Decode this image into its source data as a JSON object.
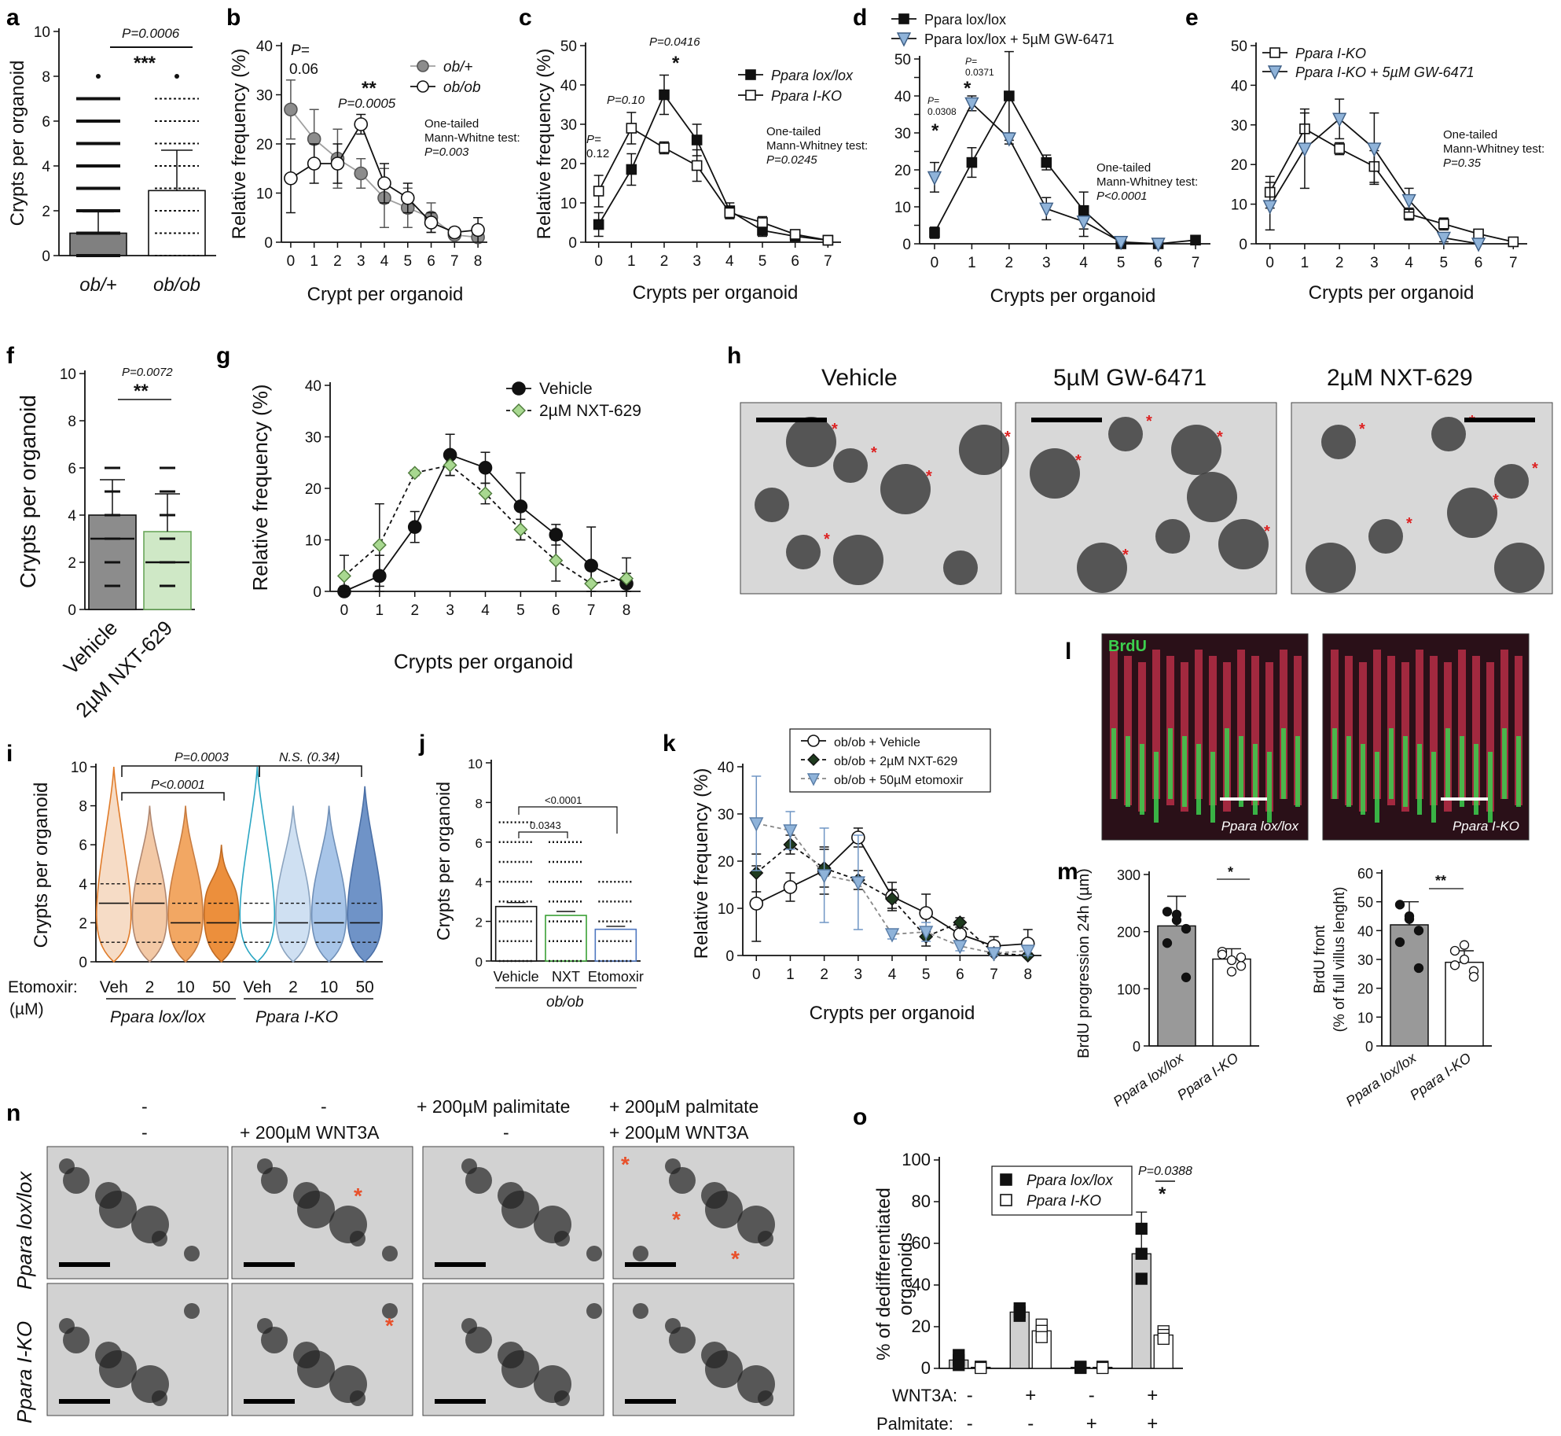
{
  "panels": {
    "a": "a",
    "b": "b",
    "c": "c",
    "d": "d",
    "e": "e",
    "f": "f",
    "g": "g",
    "h": "h",
    "i": "i",
    "j": "j",
    "k": "k",
    "l": "l",
    "m": "m",
    "n": "n",
    "o": "o"
  },
  "text": {
    "a_p": "P=0.0006",
    "a_stars": "***",
    "b_p0": "P=",
    "b_p0b": "0.06",
    "b_p3": "P=0.0005",
    "b_stars": "**",
    "b_test1": "One-tailed",
    "b_test2": "Mann-Whitne test:",
    "b_test3": "P=0.003",
    "c_p0": "P=",
    "c_p0b": "0.12",
    "c_p1": "P=0.10",
    "c_p2": "P=0.0416",
    "c_star": "*",
    "c_test1": "One-tailed",
    "c_test2": "Mann-Whitney test:",
    "c_test3": "P=0.0245",
    "d_p0": "P=",
    "d_p0b": "0.0308",
    "d_p1": "P=",
    "d_p1b": "0.0371",
    "d_star": "*",
    "d_test1": "One-tailed",
    "d_test2": "Mann-Whitney test:",
    "d_test3": "P<0.0001",
    "e_test1": "One-tailed",
    "e_test2": "Mann-Whitney test:",
    "e_test3": "P=0.35",
    "f_p": "P=0.0072",
    "f_stars": "**",
    "h_t1": "Vehicle",
    "h_t2": "5µM GW-6471",
    "h_t3": "2µM NXT-629",
    "i_p1": "P=0.0003",
    "i_p2": "P<0.0001",
    "i_ns": "N.S. (0.34)",
    "i_etox": "Etomoxir:",
    "i_um": "(µM)",
    "i_g1": "Ppara lox/lox",
    "i_g2": "Ppara I-KO",
    "j_p1": "<0.0001",
    "j_p2": "0.0343",
    "j_ob": "ob/ob",
    "l_brdu": "BrdU",
    "l_lab1": "Ppara lox/lox",
    "l_lab2": "Ppara I-KO",
    "m_s1": "*",
    "m_s2": "**",
    "n_col1a": "-",
    "n_col1b": "-",
    "n_col2a": "-",
    "n_col2b": "+ 200µM WNT3A",
    "n_col3a": "+ 200µM palimitate",
    "n_col3b": "-",
    "n_col4a": "+ 200µM palmitate",
    "n_col4b": "+ 200µM WNT3A",
    "n_row1": "Ppara lox/lox",
    "n_row2": "Ppara I-KO",
    "o_p": "P=0.0388",
    "o_star": "*",
    "o_wnt": "WNT3A:",
    "o_pal": "Palmitate:"
  },
  "chart_data": [
    {
      "id": "a",
      "type": "bar",
      "categories": [
        "ob/+",
        "ob/ob"
      ],
      "values": [
        1.0,
        2.9
      ],
      "error": [
        0.95,
        1.8
      ],
      "ylabel": "Crypts per organoid",
      "ylim": [
        0,
        10
      ],
      "yticks": [
        0,
        2,
        4,
        6,
        8,
        10
      ]
    },
    {
      "id": "b",
      "type": "line",
      "x": [
        0,
        1,
        2,
        3,
        4,
        5,
        6,
        7,
        8
      ],
      "series": [
        {
          "name": "ob/+",
          "values": [
            27,
            21,
            17,
            14,
            9,
            7,
            5,
            1.5,
            1
          ],
          "error": [
            6,
            6,
            6,
            3,
            6,
            4,
            3,
            1,
            1
          ]
        },
        {
          "name": "ob/ob",
          "values": [
            13,
            16,
            16,
            24,
            12,
            9,
            4,
            2,
            2.5
          ],
          "error": [
            7,
            4,
            4,
            2,
            4,
            3,
            2,
            1,
            2.5
          ]
        }
      ],
      "xlabel": "Crypt per organoid",
      "ylabel": "Relative frequency (%)",
      "ylim": [
        0,
        40
      ],
      "yticks": [
        0,
        10,
        20,
        30,
        40
      ]
    },
    {
      "id": "c",
      "type": "line",
      "x": [
        0,
        1,
        2,
        3,
        4,
        5,
        6,
        7
      ],
      "series": [
        {
          "name": "Ppara lox/lox",
          "values": [
            4.5,
            18.5,
            37.5,
            26,
            8,
            3,
            1.5,
            0.5
          ],
          "error": [
            3,
            4,
            5,
            4,
            2,
            1.5,
            1,
            0.5
          ]
        },
        {
          "name": "Ppara I-KO",
          "values": [
            13,
            29,
            24,
            19.5,
            7.5,
            5,
            2,
            0.5
          ],
          "error": [
            4,
            4,
            1.5,
            4,
            1.5,
            1.5,
            1,
            0.5
          ]
        }
      ],
      "xlabel": "Crypts per organoid",
      "ylabel": "Relative frequency (%)",
      "ylim": [
        0,
        50
      ],
      "yticks": [
        0,
        10,
        20,
        30,
        40,
        50
      ]
    },
    {
      "id": "d",
      "type": "line",
      "x": [
        0,
        1,
        2,
        3,
        4,
        5,
        6,
        7
      ],
      "series": [
        {
          "name": "Ppara lox/lox",
          "values": [
            3,
            22,
            40,
            22,
            9,
            0,
            0,
            1
          ],
          "error": [
            1.5,
            4,
            12,
            2,
            5,
            0,
            0,
            0.5
          ]
        },
        {
          "name": "Ppara lox/lox + 5µM GW-6471",
          "values": [
            18,
            38,
            28.5,
            9.5,
            6,
            0.5,
            0,
            null
          ],
          "error": [
            4,
            2,
            1.5,
            3,
            4,
            0.5,
            0,
            null
          ]
        }
      ],
      "xlabel": "Crypts per organoid",
      "ylim": [
        0,
        50
      ],
      "yticks": [
        0,
        5,
        10,
        15,
        20,
        25,
        30,
        35,
        40,
        45,
        50
      ]
    },
    {
      "id": "e",
      "type": "line",
      "x": [
        0,
        1,
        2,
        3,
        4,
        5,
        6,
        7
      ],
      "series": [
        {
          "name": "Ppara I-KO",
          "values": [
            13,
            29,
            24,
            19.5,
            7.5,
            5,
            2.5,
            0.5
          ],
          "error": [
            4,
            4,
            1.5,
            4,
            1.5,
            1.5,
            1,
            0.5
          ]
        },
        {
          "name": "Ppara I-KO + 5µM GW-6471",
          "values": [
            9.5,
            24,
            31.5,
            24,
            11,
            1.5,
            0,
            null
          ],
          "error": [
            6,
            10,
            5,
            9,
            3,
            1,
            0.5,
            null
          ]
        }
      ],
      "xlabel": "Crypts per organoid",
      "ylim": [
        0,
        50
      ],
      "yticks": [
        0,
        10,
        20,
        30,
        40,
        50
      ]
    },
    {
      "id": "f",
      "type": "bar",
      "categories": [
        "Vehicle",
        "2µM NXT-629"
      ],
      "values": [
        4.0,
        3.3
      ],
      "error": [
        1.5,
        1.6
      ],
      "ylabel": "Crypts per organoid",
      "ylim": [
        0,
        10
      ],
      "yticks": [
        0,
        2,
        4,
        6,
        8,
        10
      ]
    },
    {
      "id": "g",
      "type": "line",
      "x": [
        0,
        1,
        2,
        3,
        4,
        5,
        6,
        7,
        8
      ],
      "series": [
        {
          "name": "Vehicle",
          "values": [
            0,
            3,
            12.5,
            26.5,
            24,
            16.5,
            11,
            5,
            1.5
          ],
          "error": [
            1,
            4,
            3,
            4,
            3,
            6.5,
            2,
            7.5,
            2
          ]
        },
        {
          "name": "2µM NXT-629",
          "values": [
            3,
            9,
            23,
            24.5,
            19,
            12,
            6,
            1.5,
            2.5
          ],
          "error": [
            4,
            8,
            0.5,
            2,
            2,
            2,
            4,
            3,
            4
          ]
        }
      ],
      "xlabel": "Crypts per organoid",
      "ylabel": "Relative frequency (%)",
      "ylim": [
        0,
        40
      ],
      "yticks": [
        0,
        10,
        20,
        30,
        40
      ]
    },
    {
      "id": "i",
      "type": "violin",
      "categories": [
        "Veh",
        "2",
        "10",
        "50",
        "Veh",
        "2",
        "10",
        "50"
      ],
      "groups": [
        "Ppara lox/lox",
        "Ppara I-KO"
      ],
      "median": [
        3,
        3,
        2,
        2,
        2,
        2,
        2,
        2
      ],
      "max": [
        10,
        8,
        8,
        6,
        10,
        8,
        8,
        9
      ],
      "ylabel": "Crypts per organoid",
      "ylim": [
        0,
        10
      ],
      "yticks": [
        0,
        2,
        4,
        6,
        8,
        10
      ]
    },
    {
      "id": "j",
      "type": "bar",
      "categories": [
        "Vehicle",
        "NXT",
        "Etomoxir"
      ],
      "values": [
        2.75,
        2.3,
        1.6
      ],
      "error": [
        0.2,
        0.2,
        0.15
      ],
      "ylabel": "Crypts per organoid",
      "ylim": [
        0,
        10
      ],
      "yticks": [
        0,
        2,
        4,
        6,
        8,
        10
      ]
    },
    {
      "id": "k",
      "type": "line",
      "x": [
        0,
        1,
        2,
        3,
        4,
        5,
        6,
        7,
        8
      ],
      "series": [
        {
          "name": "ob/ob + Vehicle",
          "values": [
            11,
            14.5,
            18,
            25,
            12.5,
            9,
            4.5,
            2,
            2.5
          ],
          "error": [
            8,
            3,
            5,
            2,
            3,
            4,
            2,
            2,
            3
          ]
        },
        {
          "name": "ob/ob + 2µM NXT-629",
          "values": [
            17.5,
            23.5,
            18.5,
            16,
            12,
            4,
            7,
            0.5,
            0
          ],
          "error": [
            4,
            2,
            4,
            2,
            2,
            2,
            1,
            0.5,
            0.5
          ]
        },
        {
          "name": "ob/ob + 50µM etomoxir",
          "values": [
            28,
            26.5,
            17,
            15.5,
            4.5,
            5,
            2,
            0.5,
            1
          ],
          "error": [
            10,
            4,
            10,
            10,
            1,
            2,
            1,
            0.5,
            1
          ]
        }
      ],
      "xlabel": "Crypts per organoid",
      "ylabel": "Relative frequency (%)",
      "ylim": [
        0,
        40
      ],
      "yticks": [
        0,
        10,
        20,
        30,
        40
      ]
    },
    {
      "id": "m1",
      "type": "bar",
      "categories": [
        "Ppara lox/lox",
        "Ppara I-KO"
      ],
      "values": [
        210,
        152
      ],
      "error": [
        52,
        18
      ],
      "points": [
        [
          235,
          230,
          205,
          180,
          220,
          120
        ],
        [
          165,
          150,
          140,
          160,
          130,
          155
        ]
      ],
      "ylabel": "BrdU progression 24h (µm)",
      "ylim": [
        0,
        300
      ],
      "yticks": [
        0,
        100,
        200,
        300
      ]
    },
    {
      "id": "m2",
      "type": "bar",
      "categories": [
        "Ppara lox/lox",
        "Ppara I-KO"
      ],
      "values": [
        42,
        29
      ],
      "error": [
        8,
        4
      ],
      "points": [
        [
          49,
          45,
          40,
          36,
          44,
          27
        ],
        [
          33,
          30,
          26,
          28,
          35,
          24
        ]
      ],
      "ylabel": "BrdU front (% of full villus lenght)",
      "ylim": [
        0,
        60
      ],
      "yticks": [
        0,
        10,
        20,
        30,
        40,
        50,
        60
      ]
    },
    {
      "id": "o",
      "type": "bar",
      "categories": [
        "1",
        "2",
        "3",
        "4"
      ],
      "wnt3a": [
        "-",
        "+",
        "-",
        "+"
      ],
      "palmitate": [
        "-",
        "-",
        "+",
        "+"
      ],
      "series": [
        {
          "name": "Ppara lox/lox",
          "values": [
            4,
            27,
            0.5,
            55
          ],
          "error": [
            4,
            3,
            0.5,
            20
          ]
        },
        {
          "name": "Ppara I-KO",
          "values": [
            0.5,
            18,
            0.5,
            16
          ],
          "error": [
            0.5,
            5,
            0.5,
            3
          ]
        }
      ],
      "ylabel": "% of dedifferentiated organoids",
      "ylim": [
        0,
        100
      ],
      "yticks": [
        0,
        20,
        40,
        60,
        80,
        100
      ]
    }
  ]
}
